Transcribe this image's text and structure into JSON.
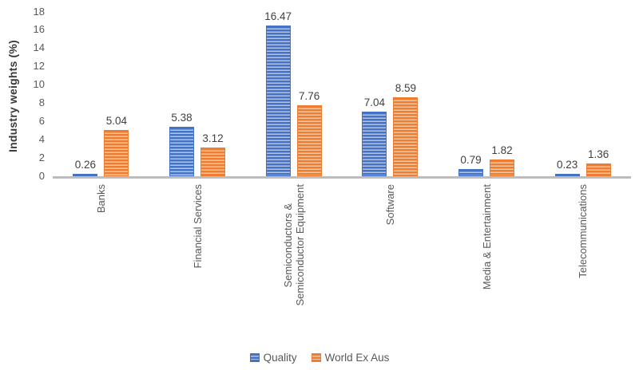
{
  "chart_data": {
    "type": "bar",
    "title": "",
    "ylabel": "Industry weights (%)",
    "xlabel": "",
    "categories": [
      "Banks",
      "Financial Services",
      "Semiconductors &\nSemiconductor Equipment",
      "Software",
      "Media & Entertainment",
      "Telecommunications"
    ],
    "series": [
      {
        "name": "Quality",
        "color": "#4472C4",
        "stripe": "#b0c5e9",
        "values": [
          0.26,
          5.38,
          16.47,
          7.04,
          0.79,
          0.23
        ]
      },
      {
        "name": "World Ex Aus",
        "color": "#ED7D31",
        "stripe": "#f7c59e",
        "values": [
          5.04,
          3.12,
          7.76,
          8.59,
          1.82,
          1.36
        ]
      }
    ],
    "value_labels": true,
    "ylim": [
      0,
      18
    ],
    "yticks": [
      0,
      2,
      4,
      6,
      8,
      10,
      12,
      14,
      16,
      18
    ],
    "grid": false,
    "legend_position": "bottom"
  },
  "colors": {
    "axis_line": "#bdbdbd",
    "tick_text": "#595959",
    "value_label_text": "#404040",
    "axis_title_text": "#3a3a3a"
  }
}
